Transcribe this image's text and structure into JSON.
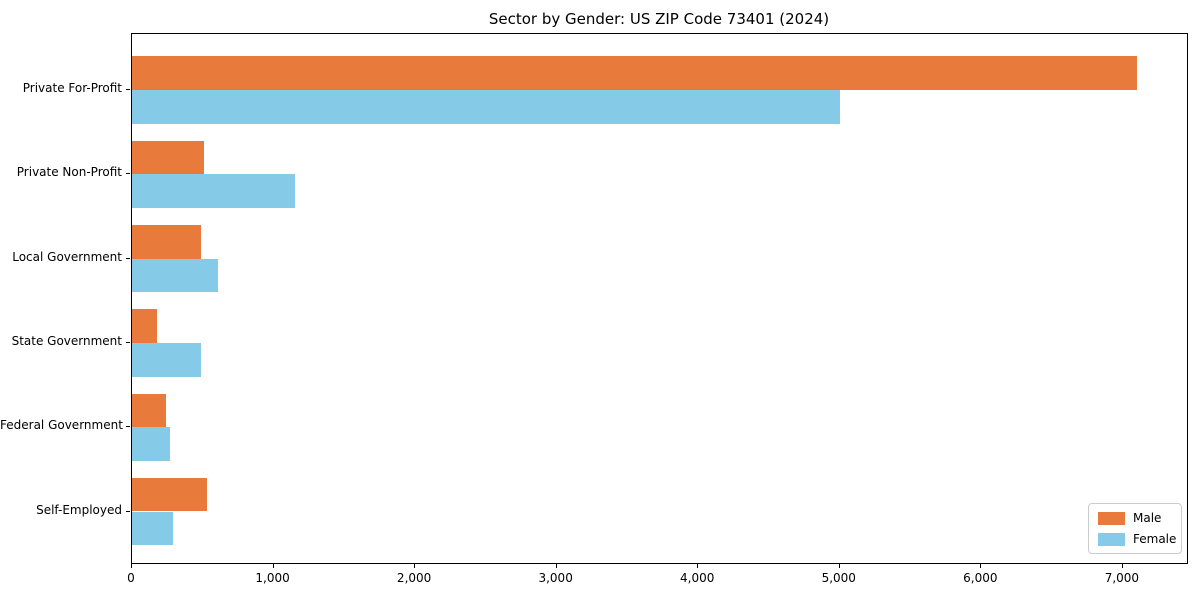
{
  "title": "Sector by Gender: US ZIP Code 73401 (2024)",
  "chart_data": {
    "type": "bar",
    "orientation": "horizontal",
    "title": "Sector by Gender: US ZIP Code 73401 (2024)",
    "categories": [
      "Private For-Profit",
      "Private Non-Profit",
      "Local Government",
      "State Government",
      "Federal Government",
      "Self-Employed"
    ],
    "series": [
      {
        "name": "Male",
        "color": "#e87a3c",
        "values": [
          7100,
          510,
          490,
          180,
          240,
          530
        ]
      },
      {
        "name": "Female",
        "color": "#85cbe8",
        "values": [
          5000,
          1150,
          610,
          490,
          270,
          290
        ]
      }
    ],
    "xlabel": "",
    "ylabel": "",
    "xlim": [
      0,
      7460
    ],
    "x_ticks": [
      0,
      1000,
      2000,
      3000,
      4000,
      5000,
      6000,
      7000
    ],
    "x_tick_labels": [
      "0",
      "1,000",
      "2,000",
      "3,000",
      "4,000",
      "5,000",
      "6,000",
      "7,000"
    ],
    "grid": false,
    "legend_position": "lower right",
    "background_color": "#ffffff",
    "spine_color": "#000000"
  }
}
